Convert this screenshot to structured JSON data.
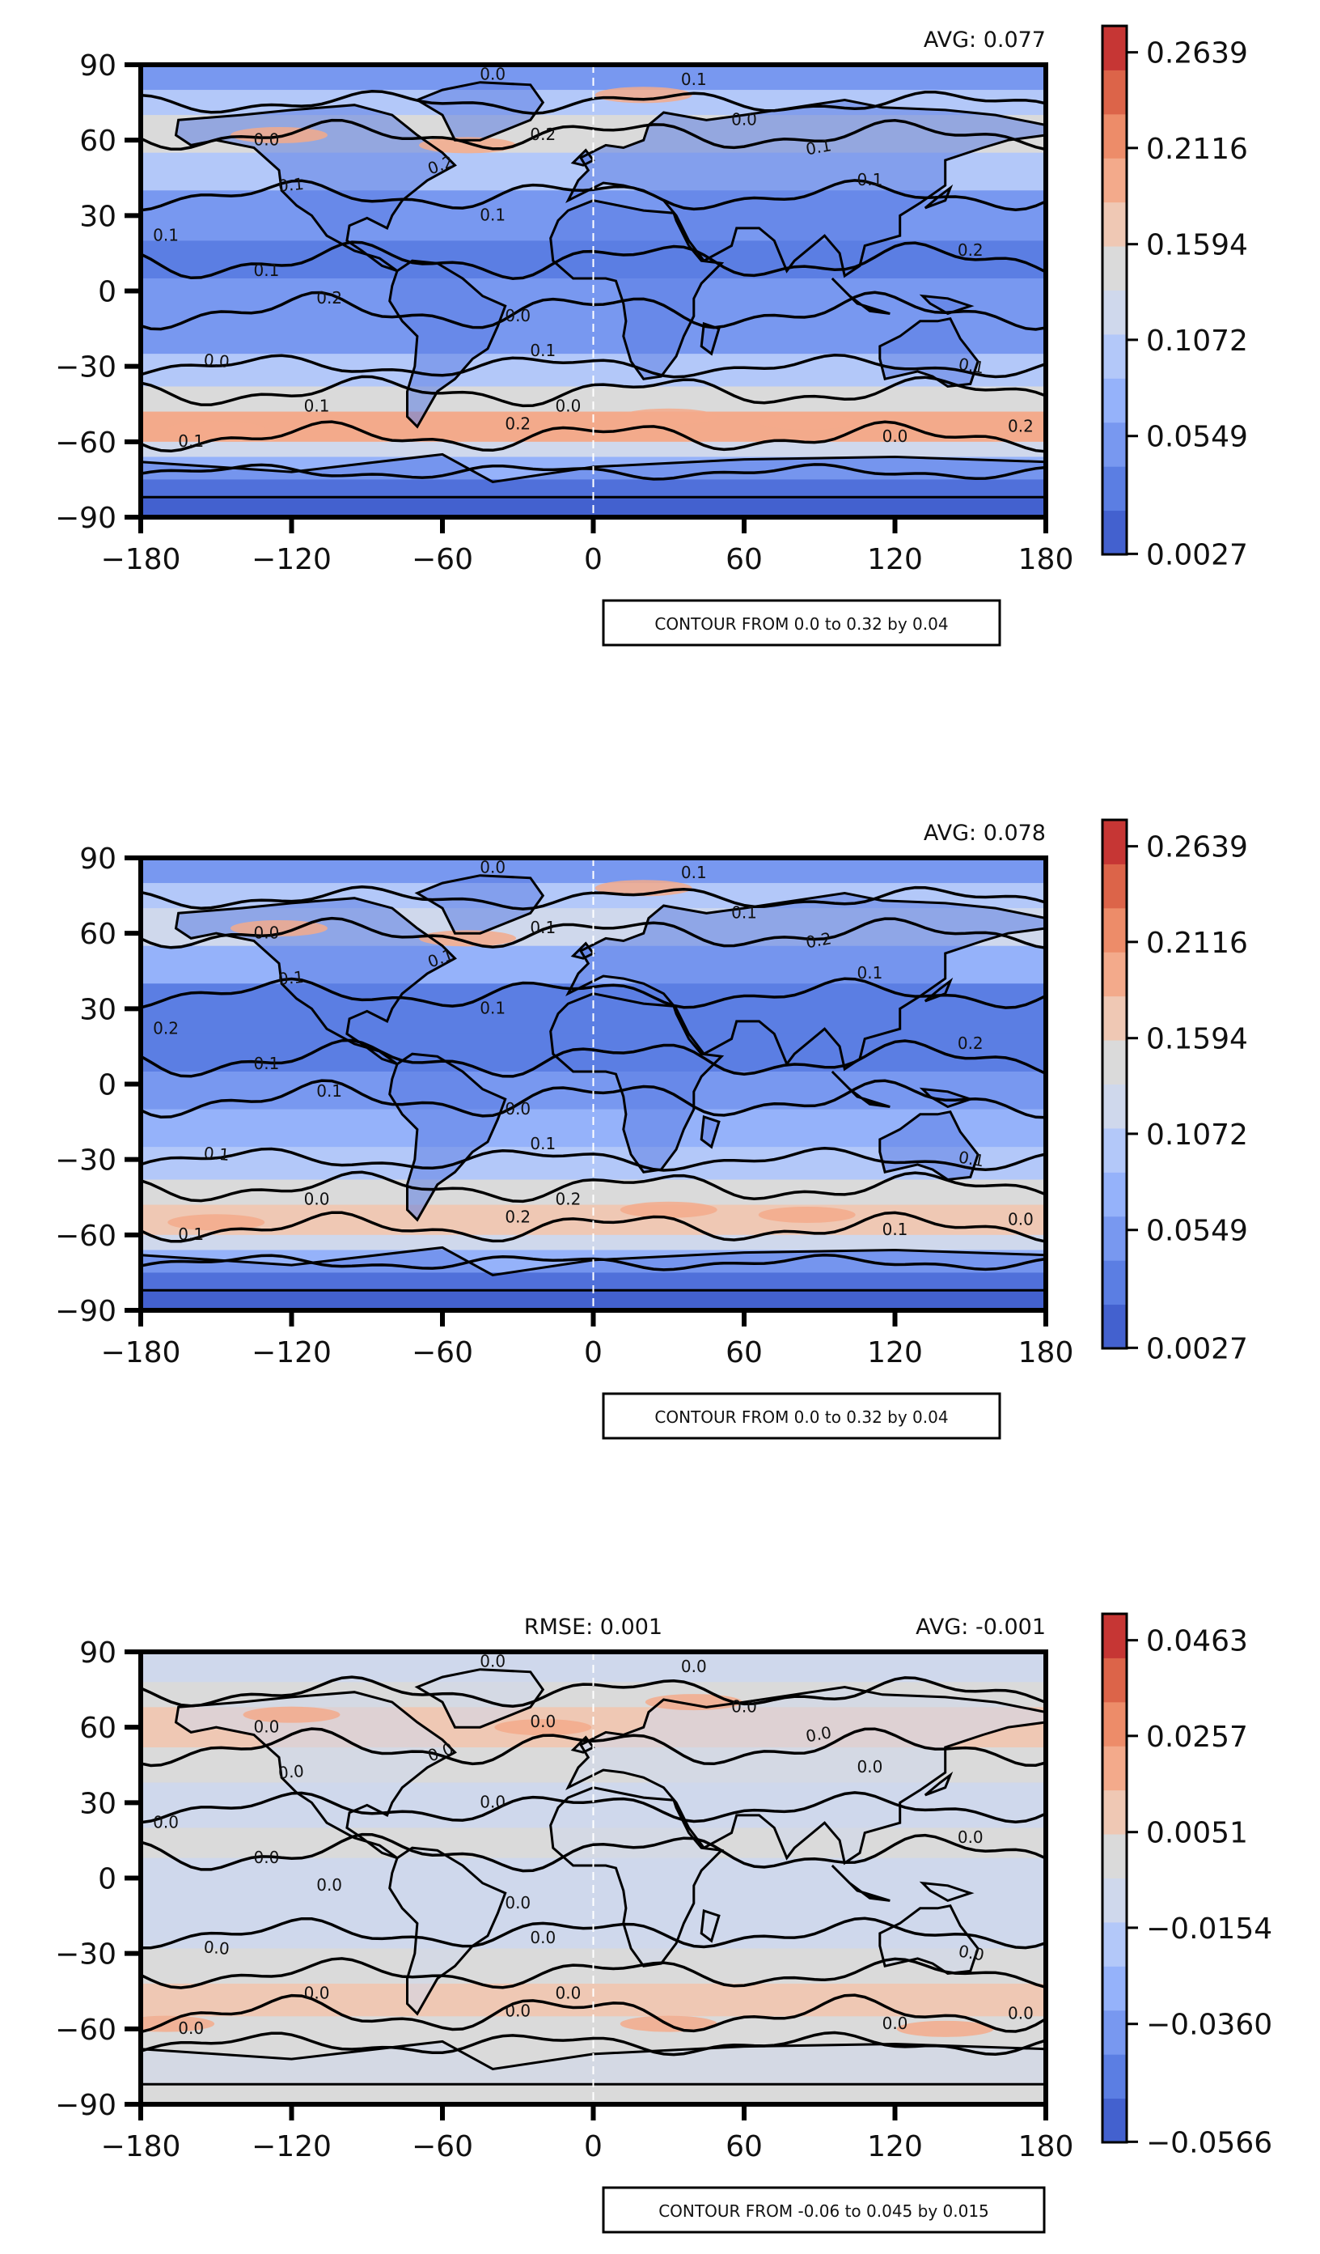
{
  "panels": [
    {
      "avg_label": "AVG: 0.077",
      "rmse_label": "",
      "contour_box": "CONTOUR FROM 0.0 to 0.32 by 0.04",
      "colorbar_ticks": [
        "0.2639",
        "0.2116",
        "0.1594",
        "0.1072",
        "0.0549",
        "0.0027"
      ],
      "colors": [
        "#4361cf",
        "#5b7ee3",
        "#7898f0",
        "#95b2fa",
        "#b3c8f9",
        "#cfd8ec",
        "#dadada",
        "#efc8b4",
        "#f3aa8b",
        "#ed8c69",
        "#dc6449",
        "#c63634"
      ],
      "contour_labels": [
        "0.0",
        "0.1",
        "0.1",
        "0.1",
        "0.2",
        "0.0",
        "0.1",
        "0.1",
        "0.0",
        "0.2",
        "0.2",
        "0.1",
        "0.0",
        "0.1",
        "0.0",
        "0.2",
        "0.1",
        "0.0",
        "0.1",
        "0.1",
        "0.2",
        "0.1",
        "0.2",
        "0.0"
      ]
    },
    {
      "avg_label": "AVG: 0.078",
      "rmse_label": "",
      "contour_box": "CONTOUR FROM 0.0 to 0.32 by 0.04",
      "colorbar_ticks": [
        "0.2639",
        "0.2116",
        "0.1594",
        "0.1072",
        "0.0549",
        "0.0027"
      ],
      "colors": [
        "#4361cf",
        "#5b7ee3",
        "#7898f0",
        "#95b2fa",
        "#b3c8f9",
        "#cfd8ec",
        "#dadada",
        "#efc8b4",
        "#f3aa8b",
        "#ed8c69",
        "#dc6449",
        "#c63634"
      ],
      "contour_labels": [
        "0.0",
        "0.1",
        "0.2",
        "0.1",
        "0.1",
        "0.1",
        "0.0",
        "0.1",
        "0.0",
        "0.1",
        "0.1",
        "0.1",
        "0.0",
        "0.1",
        "0.2",
        "0.2",
        "0.1",
        "0.1",
        "0.2",
        "0.1",
        "0.2",
        "0.1",
        "0.0",
        "0.1"
      ]
    },
    {
      "avg_label": "AVG: -0.001",
      "rmse_label": "RMSE: 0.001",
      "contour_box": "CONTOUR FROM -0.06 to 0.045 by 0.015",
      "colorbar_ticks": [
        "0.0463",
        "0.0257",
        "0.0051",
        "−0.0154",
        "−0.0360",
        "−0.0566"
      ],
      "colors": [
        "#4361cf",
        "#5b7ee3",
        "#7898f0",
        "#95b2fa",
        "#b3c8f9",
        "#cfd8ec",
        "#dadada",
        "#efc8b4",
        "#f3aa8b",
        "#ed8c69",
        "#dc6449",
        "#c63634"
      ],
      "contour_labels": [
        "0.0",
        "0.0",
        "0.0",
        "0.0",
        "0.0",
        "0.0",
        "0.0",
        "0.0",
        "0.0",
        "0.0",
        "0.0",
        "0.0",
        "0.0",
        "0.0",
        "0.0",
        "0.0",
        "0.0",
        "0.0",
        "0.0",
        "0.0",
        "0.0",
        "0.0",
        "0.0",
        "0.0"
      ]
    }
  ],
  "x_ticks": [
    "−180",
    "−120",
    "−60",
    "0",
    "60",
    "120",
    "180"
  ],
  "y_ticks": [
    "90",
    "60",
    "30",
    "0",
    "−30",
    "−60",
    "−90"
  ]
}
